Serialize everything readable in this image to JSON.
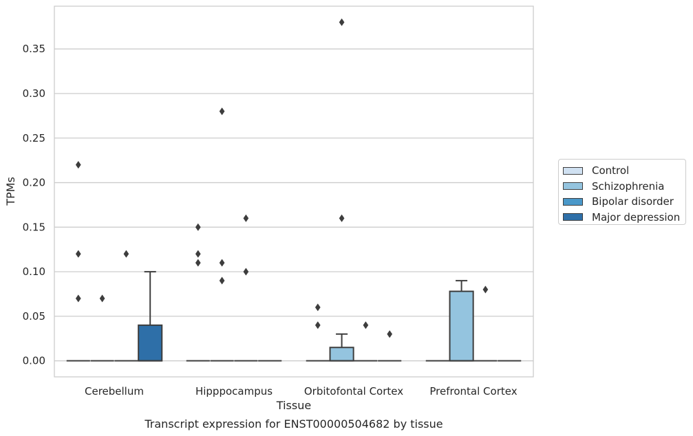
{
  "chart_data": {
    "type": "box",
    "title": "Transcript expression for ENST00000504682 by tissue",
    "xlabel": "Tissue",
    "ylabel": "TPMs",
    "categories": [
      "Cerebellum",
      "Hipppocampus",
      "Orbitofontal Cortex",
      "Prefrontal Cortex"
    ],
    "ylim": [
      -0.018,
      0.398
    ],
    "yticks": [
      0.0,
      0.05,
      0.1,
      0.15,
      0.2,
      0.25,
      0.3,
      0.35
    ],
    "ytick_labels": [
      "0.00",
      "0.05",
      "0.10",
      "0.15",
      "0.20",
      "0.25",
      "0.30",
      "0.35"
    ],
    "grid": true,
    "legend_position": "right",
    "series": [
      {
        "name": "Control",
        "color": "#d0e1f2",
        "boxes": [
          {
            "category": "Cerebellum",
            "q1": 0,
            "median": 0,
            "q3": 0,
            "whisker_low": 0,
            "whisker_high": 0,
            "outliers": [
              0.22,
              0.12,
              0.07
            ]
          },
          {
            "category": "Hipppocampus",
            "q1": 0,
            "median": 0,
            "q3": 0,
            "whisker_low": 0,
            "whisker_high": 0,
            "outliers": [
              0.15,
              0.12,
              0.11
            ]
          },
          {
            "category": "Orbitofontal Cortex",
            "q1": 0,
            "median": 0,
            "q3": 0,
            "whisker_low": 0,
            "whisker_high": 0,
            "outliers": [
              0.06,
              0.04
            ]
          },
          {
            "category": "Prefrontal Cortex",
            "q1": 0,
            "median": 0,
            "q3": 0,
            "whisker_low": 0,
            "whisker_high": 0,
            "outliers": []
          }
        ]
      },
      {
        "name": "Schizophrenia",
        "color": "#94c4df",
        "boxes": [
          {
            "category": "Cerebellum",
            "q1": 0,
            "median": 0,
            "q3": 0,
            "whisker_low": 0,
            "whisker_high": 0,
            "outliers": [
              0.07
            ]
          },
          {
            "category": "Hipppocampus",
            "q1": 0,
            "median": 0,
            "q3": 0,
            "whisker_low": 0,
            "whisker_high": 0,
            "outliers": [
              0.28,
              0.11,
              0.09
            ]
          },
          {
            "category": "Orbitofontal Cortex",
            "q1": 0,
            "median": 0,
            "q3": 0.015,
            "whisker_low": 0,
            "whisker_high": 0.03,
            "outliers": [
              0.38,
              0.16
            ]
          },
          {
            "category": "Prefrontal Cortex",
            "q1": 0,
            "median": 0,
            "q3": 0.078,
            "whisker_low": 0,
            "whisker_high": 0.09,
            "outliers": []
          }
        ]
      },
      {
        "name": "Bipolar disorder",
        "color": "#4a98c9",
        "boxes": [
          {
            "category": "Cerebellum",
            "q1": 0,
            "median": 0,
            "q3": 0,
            "whisker_low": 0,
            "whisker_high": 0,
            "outliers": [
              0.12
            ]
          },
          {
            "category": "Hipppocampus",
            "q1": 0,
            "median": 0,
            "q3": 0,
            "whisker_low": 0,
            "whisker_high": 0,
            "outliers": [
              0.16,
              0.1
            ]
          },
          {
            "category": "Orbitofontal Cortex",
            "q1": 0,
            "median": 0,
            "q3": 0,
            "whisker_low": 0,
            "whisker_high": 0,
            "outliers": [
              0.04
            ]
          },
          {
            "category": "Prefrontal Cortex",
            "q1": 0,
            "median": 0,
            "q3": 0,
            "whisker_low": 0,
            "whisker_high": 0,
            "outliers": [
              0.08
            ]
          }
        ]
      },
      {
        "name": "Major depression",
        "color": "#2e6fa8",
        "boxes": [
          {
            "category": "Cerebellum",
            "q1": 0,
            "median": 0,
            "q3": 0.04,
            "whisker_low": 0,
            "whisker_high": 0.1,
            "outliers": []
          },
          {
            "category": "Hipppocampus",
            "q1": 0,
            "median": 0,
            "q3": 0,
            "whisker_low": 0,
            "whisker_high": 0,
            "outliers": []
          },
          {
            "category": "Orbitofontal Cortex",
            "q1": 0,
            "median": 0,
            "q3": 0,
            "whisker_low": 0,
            "whisker_high": 0,
            "outliers": [
              0.03
            ]
          },
          {
            "category": "Prefrontal Cortex",
            "q1": 0,
            "median": 0,
            "q3": 0,
            "whisker_low": 0,
            "whisker_high": 0,
            "outliers": []
          }
        ]
      }
    ]
  }
}
